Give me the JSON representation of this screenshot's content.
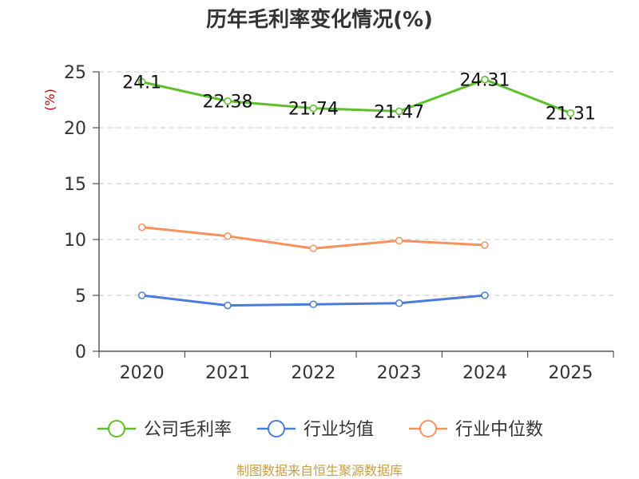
{
  "chart_data": {
    "type": "line",
    "title": "历年毛利率变化情况(%)",
    "ylabel": "(%)",
    "xlabel": "",
    "categories": [
      "2020",
      "2021",
      "2022",
      "2023",
      "2024",
      "2025"
    ],
    "ylim": [
      0,
      25
    ],
    "yticks": [
      0,
      5,
      10,
      15,
      20,
      25
    ],
    "grid": true,
    "legend_position": "bottom",
    "series": [
      {
        "name": "公司毛利率",
        "color": "#5cc02a",
        "values": [
          24.1,
          22.38,
          21.74,
          21.47,
          24.31,
          21.31
        ],
        "labels": [
          "24.1",
          "22.38",
          "21.74",
          "21.47",
          "24.31",
          "21.31"
        ]
      },
      {
        "name": "行业均值",
        "color": "#4a7ddb",
        "values": [
          5.0,
          4.1,
          4.2,
          4.3,
          5.0,
          null
        ]
      },
      {
        "name": "行业中位数",
        "color": "#f5925e",
        "values": [
          11.1,
          10.3,
          9.2,
          9.9,
          9.5,
          null
        ]
      }
    ]
  },
  "footer": {
    "source": "制图数据来自恒生聚源数据库"
  }
}
